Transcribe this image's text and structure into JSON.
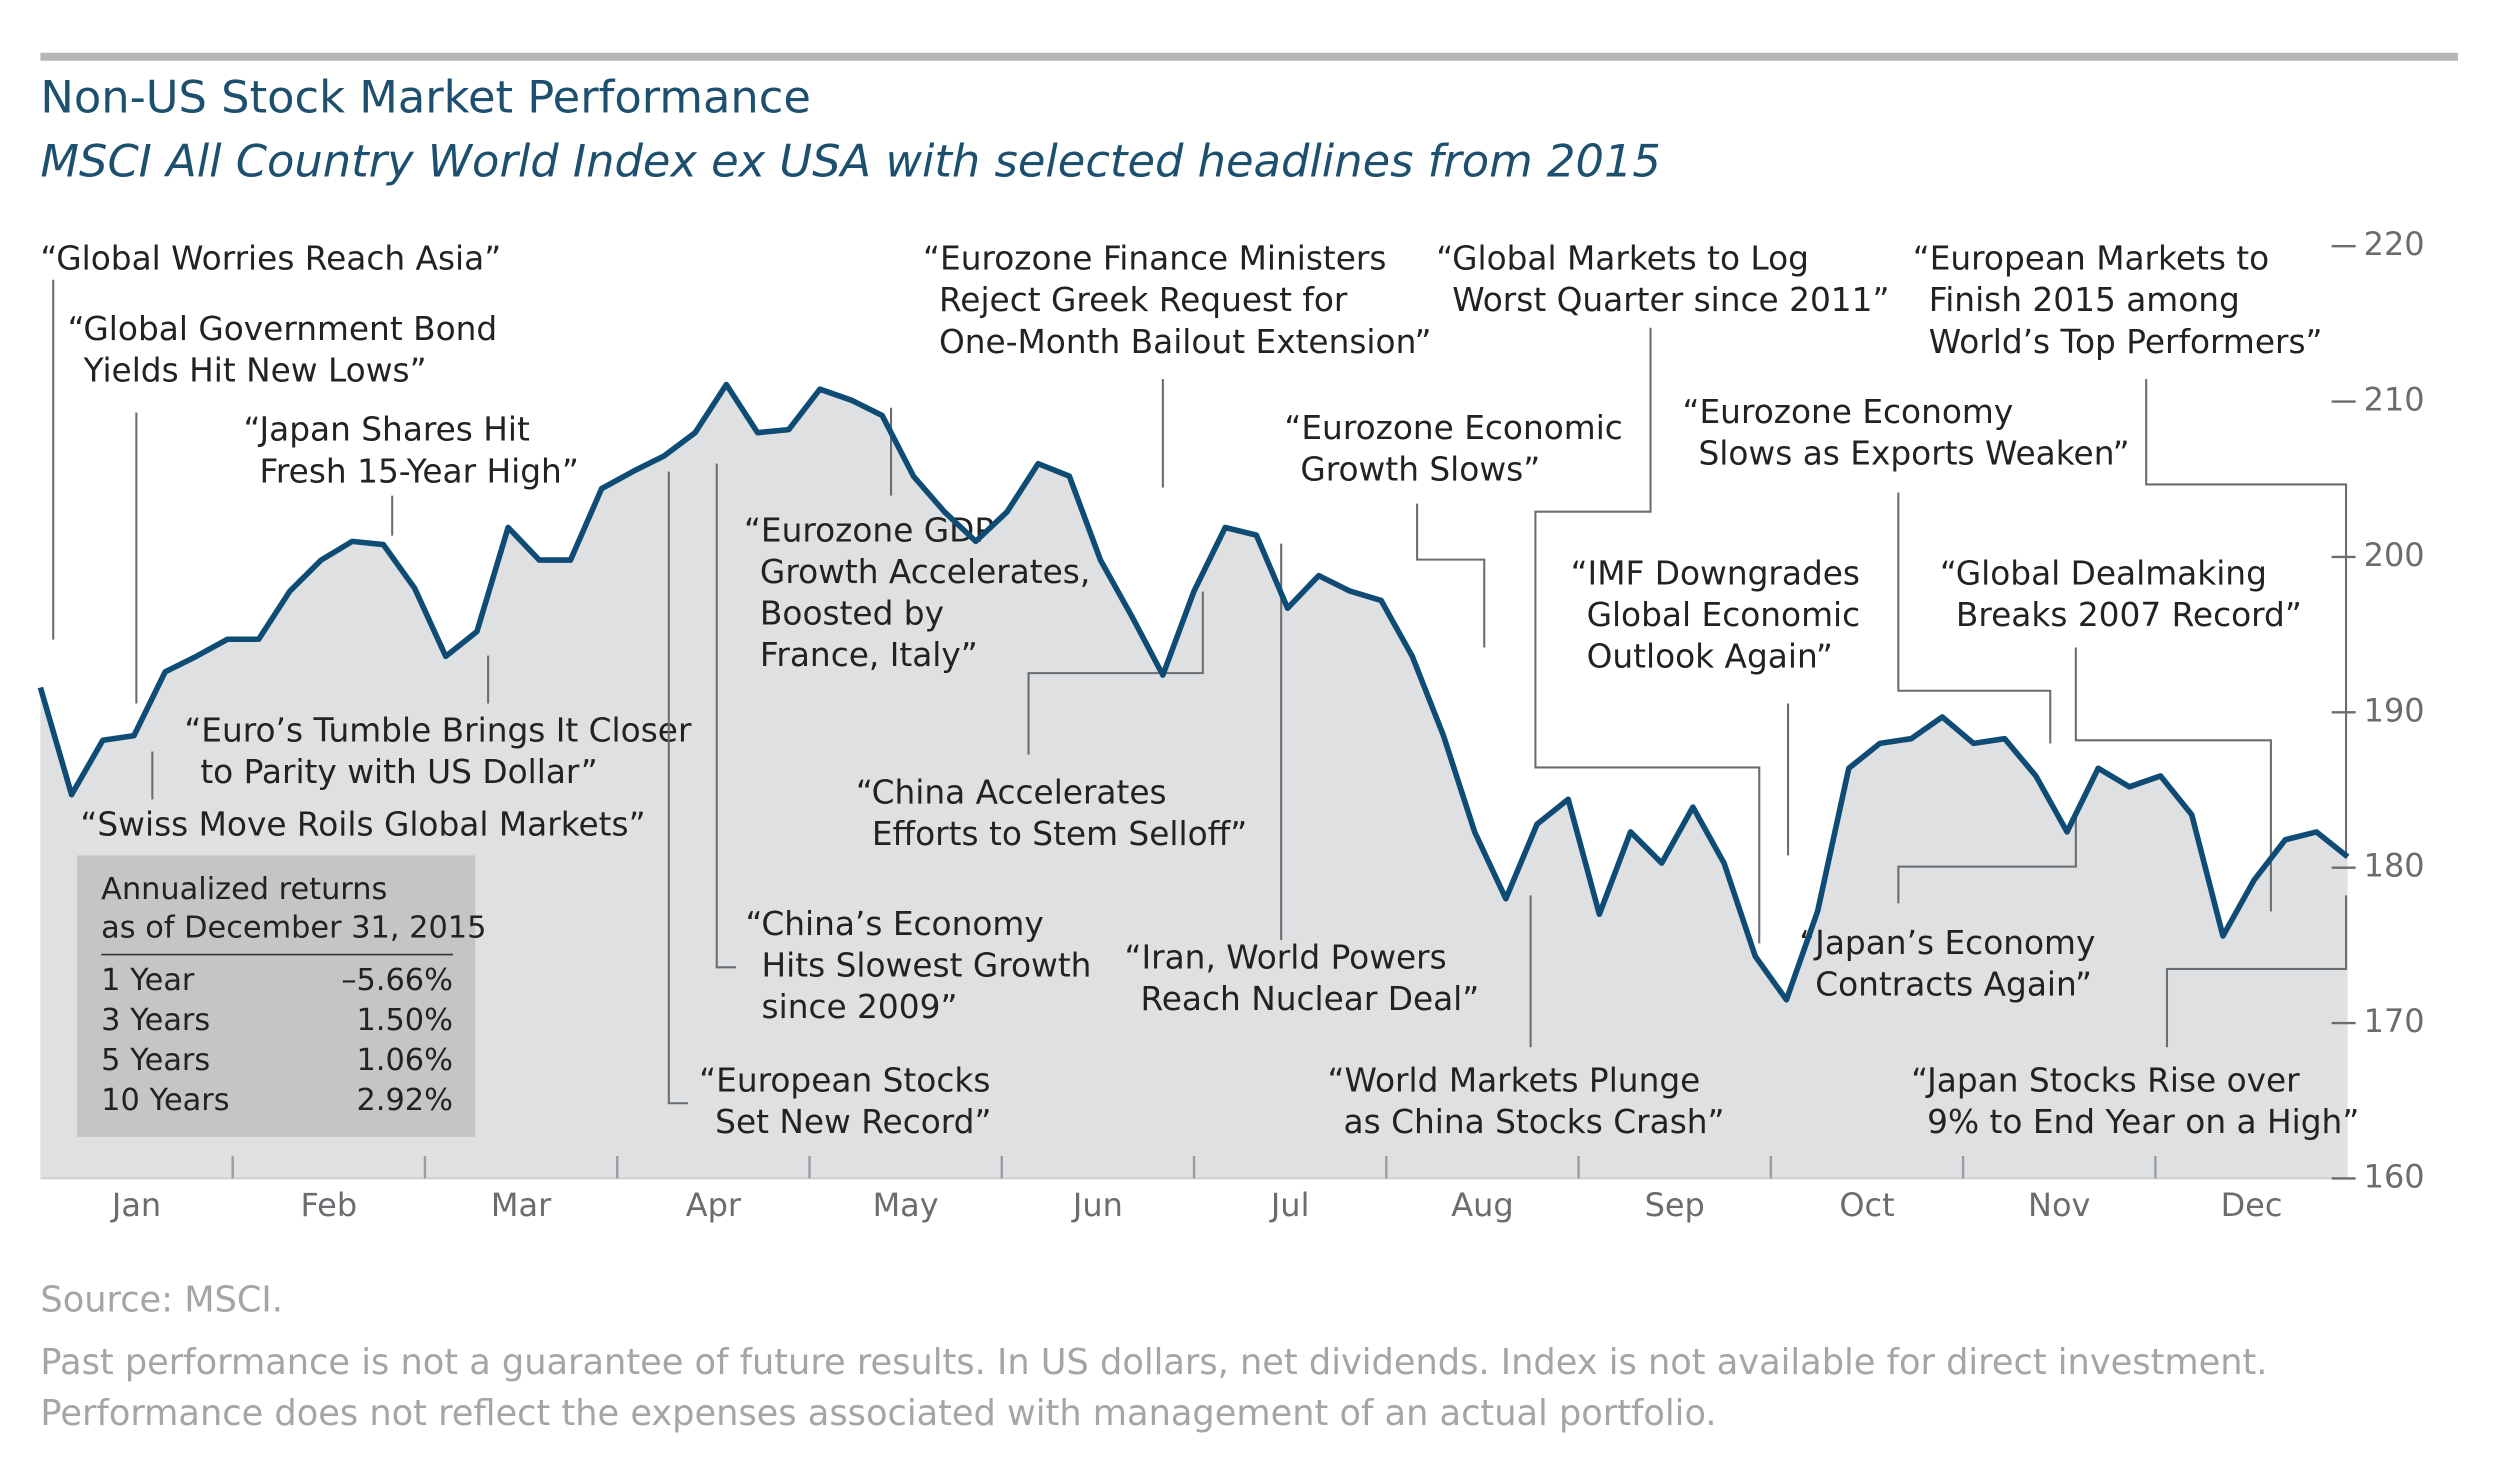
{
  "chart_data": {
    "type": "line",
    "title": "Non-US Stock Market Performance",
    "subtitle": "MSCI All Country World Index ex USA with selected headlines from 2015",
    "months": [
      "Jan",
      "Feb",
      "Mar",
      "Apr",
      "May",
      "Jun",
      "Jul",
      "Aug",
      "Sep",
      "Oct",
      "Nov",
      "Dec"
    ],
    "values": [
      191.6,
      184.7,
      188.2,
      188.5,
      192.6,
      193.6,
      194.7,
      194.7,
      197.8,
      199.8,
      201,
      200.8,
      198,
      193.6,
      195.2,
      201.9,
      199.8,
      199.8,
      204.4,
      205.5,
      206.5,
      208,
      211.1,
      208,
      208.2,
      210.8,
      210.1,
      209.1,
      205.2,
      202.9,
      201,
      202.9,
      206,
      205.2,
      199.8,
      196.2,
      192.4,
      197.8,
      201.9,
      201.4,
      196.7,
      198.8,
      197.8,
      197.2,
      193.6,
      188.5,
      182.3,
      178,
      182.8,
      184.4,
      177,
      182.3,
      180.3,
      183.9,
      180.3,
      174.3,
      171.5,
      177.2,
      186.4,
      188,
      188.3,
      189.7,
      188,
      188.3,
      185.9,
      182.3,
      186.4,
      185.2,
      185.9,
      183.4,
      175.6,
      179.2,
      181.8,
      182.3,
      180.7
    ],
    "color": "#0f4c75",
    "area_color": "#dfe0e2",
    "ylim": [
      160,
      220
    ],
    "yticks": [
      160,
      170,
      180,
      190,
      200,
      210,
      220
    ],
    "annotations": [
      {
        "lines": [
          "“Global Worries Reach Asia”"
        ]
      },
      {
        "lines": [
          "“Global Government Bond",
          "Yields Hit New Lows”"
        ]
      },
      {
        "lines": [
          "“Japan Shares Hit",
          "Fresh 15-Year High”"
        ]
      },
      {
        "lines": [
          "“Euro’s Tumble Brings It Closer",
          "to Parity with US Dollar”"
        ]
      },
      {
        "lines": [
          "“Swiss Move Roils Global Markets”"
        ]
      },
      {
        "lines": [
          "“Eurozone GDP",
          "Growth Accelerates,",
          "Boosted by",
          "France, Italy”"
        ]
      },
      {
        "lines": [
          "“Eurozone Finance Ministers",
          "Reject Greek Request for",
          "One-Month Bailout Extension”"
        ]
      },
      {
        "lines": [
          "“China Accelerates",
          "Efforts to Stem Selloff”"
        ]
      },
      {
        "lines": [
          "“China’s Economy",
          "Hits Slowest Growth",
          "since 2009”"
        ]
      },
      {
        "lines": [
          "“European Stocks",
          "Set New Record”"
        ]
      },
      {
        "lines": [
          "“Iran, World Powers",
          "Reach Nuclear Deal”"
        ]
      },
      {
        "lines": [
          "“Eurozone Economic",
          "Growth Slows”"
        ]
      },
      {
        "lines": [
          "“Global Markets to Log",
          "Worst Quarter since 2011”"
        ]
      },
      {
        "lines": [
          "“World Markets Plunge",
          "as China Stocks Crash”"
        ]
      },
      {
        "lines": [
          "“IMF Downgrades",
          "Global Economic",
          "Outlook Again”"
        ]
      },
      {
        "lines": [
          "“Eurozone Economy",
          "Slows as Exports Weaken”"
        ]
      },
      {
        "lines": [
          "“European Markets to",
          "Finish 2015 among",
          "World’s Top Performers”"
        ]
      },
      {
        "lines": [
          "“Global Dealmaking",
          "Breaks 2007 Record”"
        ]
      },
      {
        "lines": [
          "“Japan’s Economy",
          "Contracts Again”"
        ]
      },
      {
        "lines": [
          "“Japan Stocks Rise over",
          "9% to End Year on a High”"
        ]
      }
    ],
    "returns_table": {
      "heading": [
        "Annualized returns",
        "as of December 31, 2015"
      ],
      "rows": [
        [
          "1 Year",
          "–5.66%"
        ],
        [
          "3 Years",
          "1.50%"
        ],
        [
          "5 Years",
          "1.06%"
        ],
        [
          "10 Years",
          "2.92%"
        ]
      ]
    },
    "source": "Source: MSCI.",
    "notes": [
      "Past performance is not a guarantee of future results. In US dollars, net dividends. Index is not available for direct investment.",
      "Performance does not reflect the expenses associated with management of an actual portfolio."
    ]
  }
}
